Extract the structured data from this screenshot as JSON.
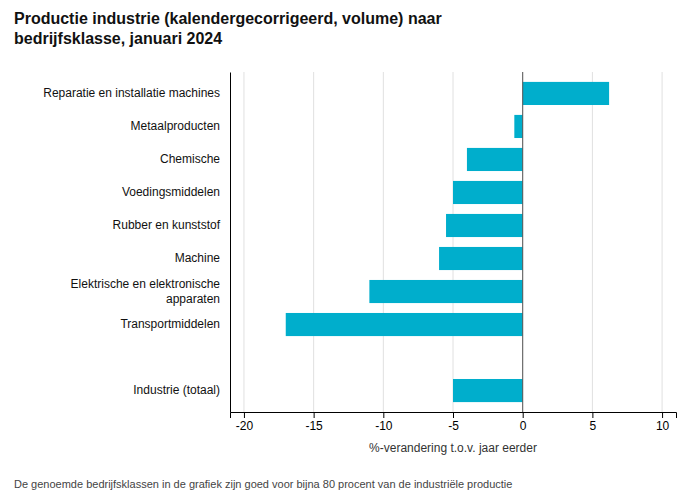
{
  "chart_data": {
    "type": "bar",
    "orientation": "horizontal",
    "title": "Productie industrie (kalendergecorrigeerd, volume) naar\nbedrijfsklasse, januari 2024",
    "categories": [
      "Reparatie en installatie machines",
      "Metaalproducten",
      "Chemische",
      "Voedingsmiddelen",
      "Rubber en kunststof",
      "Machine",
      "Elektrische en elektronische\napparaten",
      "Transportmiddelen",
      null,
      "Industrie (totaal)"
    ],
    "values": [
      6.2,
      -0.6,
      -4.0,
      -5.0,
      -5.5,
      -6.0,
      -11.0,
      -17.0,
      null,
      -5.0
    ],
    "color": "#00AECC",
    "xlabel": "%-verandering t.o.v. jaar eerder",
    "xlim": [
      -21,
      11
    ],
    "xticks": [
      -20,
      -15,
      -10,
      -5,
      0,
      5,
      10
    ],
    "grid": true,
    "annotations": [
      "De genoemde bedrijfsklassen in de grafiek zijn goed voor bijna 80 procent van de industriële productie"
    ]
  }
}
